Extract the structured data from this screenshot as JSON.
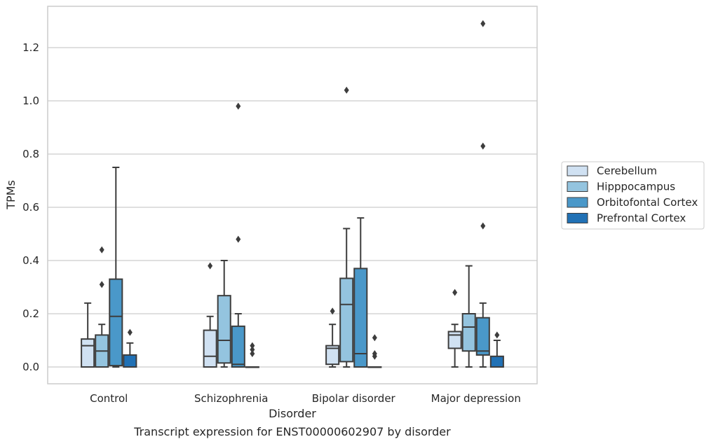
{
  "chart_data": {
    "type": "box",
    "caption": "Transcript expression for ENST00000602907 by disorder",
    "xlabel": "Disorder",
    "ylabel": "TPMs",
    "ylim": [
      -0.065,
      1.36
    ],
    "yticks": [
      "0.0",
      "0.2",
      "0.4",
      "0.6",
      "0.8",
      "1.0",
      "1.2"
    ],
    "ytick_values": [
      0.0,
      0.2,
      0.4,
      0.6,
      0.8,
      1.0,
      1.2
    ],
    "grid": true,
    "legend_position": "right",
    "categories": [
      "Control",
      "Schizophrenia",
      "Bipolar disorder",
      "Major depression"
    ],
    "series": [
      {
        "name": "Cerebellum",
        "color": "#d0e1f2",
        "boxes": [
          {
            "whisker_low": 0.0,
            "q1": 0.0,
            "median": 0.08,
            "q3": 0.105,
            "whisker_high": 0.24,
            "outliers": []
          },
          {
            "whisker_low": 0.0,
            "q1": 0.0,
            "median": 0.04,
            "q3": 0.138,
            "whisker_high": 0.19,
            "outliers": [
              0.38
            ]
          },
          {
            "whisker_low": 0.0,
            "q1": 0.01,
            "median": 0.07,
            "q3": 0.08,
            "whisker_high": 0.16,
            "outliers": [
              0.21
            ]
          },
          {
            "whisker_low": 0.0,
            "q1": 0.07,
            "median": 0.12,
            "q3": 0.133,
            "whisker_high": 0.16,
            "outliers": [
              0.28
            ]
          }
        ]
      },
      {
        "name": "Hipppocampus",
        "color": "#94c4df",
        "boxes": [
          {
            "whisker_low": 0.0,
            "q1": 0.0,
            "median": 0.06,
            "q3": 0.12,
            "whisker_high": 0.16,
            "outliers": [
              0.31,
              0.44
            ]
          },
          {
            "whisker_low": 0.0,
            "q1": 0.015,
            "median": 0.1,
            "q3": 0.268,
            "whisker_high": 0.4,
            "outliers": []
          },
          {
            "whisker_low": 0.0,
            "q1": 0.02,
            "median": 0.235,
            "q3": 0.333,
            "whisker_high": 0.52,
            "outliers": [
              1.04
            ]
          },
          {
            "whisker_low": 0.0,
            "q1": 0.06,
            "median": 0.15,
            "q3": 0.2,
            "whisker_high": 0.38,
            "outliers": []
          }
        ]
      },
      {
        "name": "Orbitofontal Cortex",
        "color": "#4a98c9",
        "boxes": [
          {
            "whisker_low": 0.0,
            "q1": 0.005,
            "median": 0.19,
            "q3": 0.33,
            "whisker_high": 0.75,
            "outliers": []
          },
          {
            "whisker_low": 0.0,
            "q1": 0.0,
            "median": 0.01,
            "q3": 0.153,
            "whisker_high": 0.2,
            "outliers": [
              0.48,
              0.98
            ]
          },
          {
            "whisker_low": 0.0,
            "q1": 0.0,
            "median": 0.05,
            "q3": 0.37,
            "whisker_high": 0.56,
            "outliers": []
          },
          {
            "whisker_low": 0.0,
            "q1": 0.045,
            "median": 0.06,
            "q3": 0.185,
            "whisker_high": 0.24,
            "outliers": [
              0.53,
              0.83,
              1.29
            ]
          }
        ]
      },
      {
        "name": "Prefrontal Cortex",
        "color": "#2171b5",
        "boxes": [
          {
            "whisker_low": 0.0,
            "q1": 0.0,
            "median": 0.0,
            "q3": 0.045,
            "whisker_high": 0.09,
            "outliers": [
              0.13
            ]
          },
          {
            "whisker_low": 0.0,
            "q1": 0.0,
            "median": 0.0,
            "q3": 0.0,
            "whisker_high": 0.0,
            "outliers": [
              0.05,
              0.065,
              0.08
            ]
          },
          {
            "whisker_low": 0.0,
            "q1": 0.0,
            "median": 0.0,
            "q3": 0.0,
            "whisker_high": 0.0,
            "outliers": [
              0.04,
              0.05,
              0.11
            ]
          },
          {
            "whisker_low": 0.0,
            "q1": 0.0,
            "median": 0.0,
            "q3": 0.04,
            "whisker_high": 0.1,
            "outliers": [
              0.12
            ]
          }
        ]
      }
    ]
  }
}
